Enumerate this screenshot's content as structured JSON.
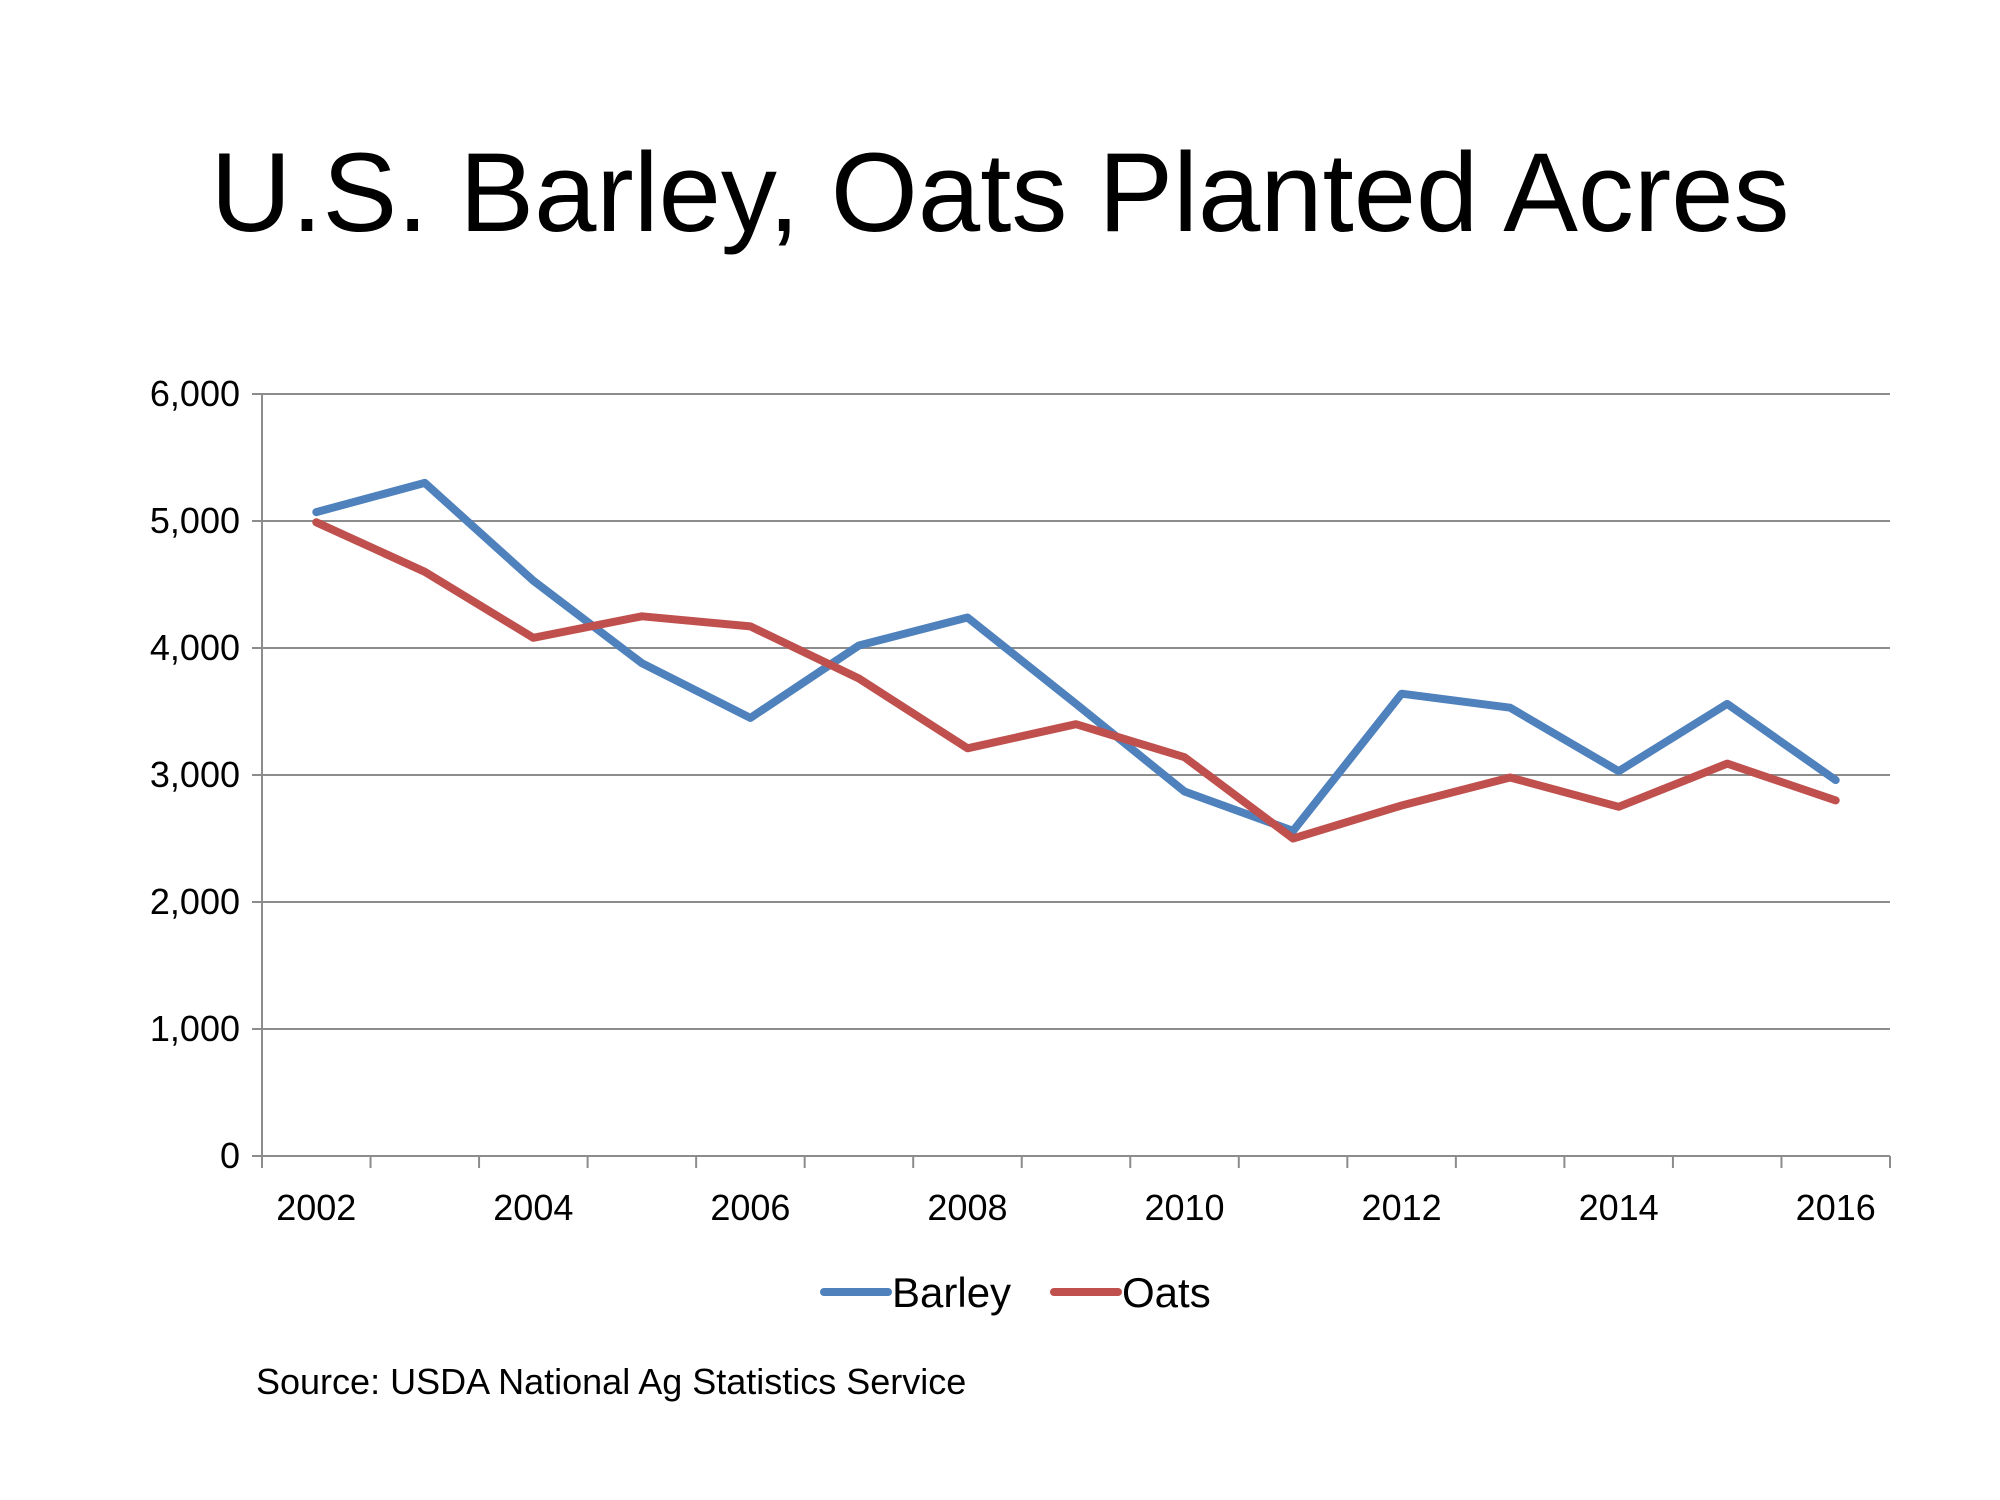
{
  "title": "U.S. Barley, Oats Planted Acres",
  "source": "Source: USDA National Ag Statistics Service",
  "chart_data": {
    "type": "line",
    "title": "U.S. Barley, Oats Planted Acres",
    "xlabel": "",
    "ylabel": "",
    "x": [
      2002,
      2003,
      2004,
      2005,
      2006,
      2007,
      2008,
      2009,
      2010,
      2011,
      2012,
      2013,
      2014,
      2015,
      2016
    ],
    "x_tick_labels": [
      "2002",
      "2004",
      "2006",
      "2008",
      "2010",
      "2012",
      "2014",
      "2016"
    ],
    "y_tick_labels": [
      "0",
      "1,000",
      "2,000",
      "3,000",
      "4,000",
      "5,000",
      "6,000"
    ],
    "y_ticks": [
      0,
      1000,
      2000,
      3000,
      4000,
      5000,
      6000
    ],
    "ylim": [
      0,
      6000
    ],
    "grid": true,
    "legend_position": "bottom",
    "series": [
      {
        "name": "Barley",
        "color": "#4f81bd",
        "values": [
          5070,
          5300,
          4530,
          3880,
          3450,
          4020,
          4240,
          3560,
          2870,
          2560,
          3640,
          3530,
          3030,
          3560,
          2960
        ]
      },
      {
        "name": "Oats",
        "color": "#c0504d",
        "values": [
          4990,
          4600,
          4080,
          4250,
          4170,
          3760,
          3210,
          3400,
          3140,
          2500,
          2760,
          2980,
          2750,
          3090,
          2800
        ]
      }
    ]
  }
}
